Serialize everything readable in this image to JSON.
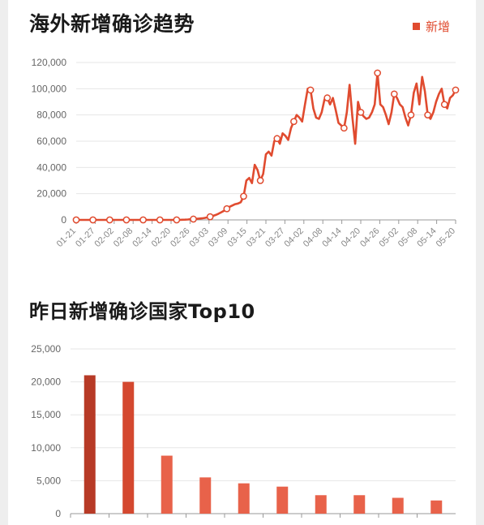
{
  "chart_data": [
    {
      "type": "line",
      "title": "海外新增确诊趋势",
      "legend": "新增",
      "color": "#e04b2f",
      "ylim": [
        0,
        120000
      ],
      "yticks": [
        "0",
        "20,000",
        "40,000",
        "60,000",
        "80,000",
        "100,000",
        "120,000"
      ],
      "xtick_labels": [
        "01-21",
        "01-27",
        "02-02",
        "02-08",
        "02-14",
        "02-20",
        "02-26",
        "03-03",
        "03-09",
        "03-15",
        "03-21",
        "03-27",
        "04-02",
        "04-08",
        "04-14",
        "04-20",
        "04-26",
        "05-02",
        "05-08",
        "05-14",
        "05-20"
      ],
      "series": [
        {
          "name": "新增",
          "values": [
            0,
            0,
            0,
            0,
            0,
            0,
            0,
            0,
            0,
            0,
            0,
            0,
            0,
            0,
            0,
            0,
            0,
            0,
            0,
            0,
            0,
            0,
            0,
            0,
            0,
            0,
            0,
            0,
            0,
            0,
            0,
            0,
            0,
            0,
            0,
            0,
            0,
            0,
            100,
            200,
            300,
            500,
            600,
            800,
            1000,
            1200,
            1500,
            1900,
            2400,
            3000,
            3800,
            4700,
            5800,
            7000,
            8500,
            10000,
            11000,
            12000,
            12500,
            13500,
            18000,
            30000,
            32000,
            28000,
            42000,
            38000,
            30000,
            35000,
            50000,
            52000,
            49000,
            60000,
            62000,
            58000,
            66000,
            64000,
            61000,
            70000,
            75000,
            80000,
            78000,
            75000,
            88000,
            100000,
            99000,
            85000,
            78000,
            77000,
            82000,
            92000,
            93000,
            88000,
            93000,
            84000,
            74000,
            72000,
            70000,
            82000,
            103000,
            78000,
            58000,
            90000,
            82000,
            79000,
            77000,
            78000,
            82000,
            88000,
            112000,
            88000,
            86000,
            80000,
            73000,
            82000,
            96000,
            93000,
            88000,
            86000,
            78000,
            72000,
            80000,
            97000,
            104000,
            88000,
            109000,
            98000,
            80000,
            77000,
            82000,
            90000,
            96000,
            100000,
            88000,
            85000,
            93000,
            95000,
            99000
          ],
          "markers_every": 6
        }
      ]
    },
    {
      "type": "bar",
      "title": "昨日新增确诊国家Top10",
      "ylim": [
        0,
        25000
      ],
      "yticks": [
        "0",
        "5,000",
        "10,000",
        "15,000",
        "20,000",
        "25,000"
      ],
      "categories": [
        "",
        "",
        "",
        "",
        "",
        "",
        "",
        "",
        "",
        ""
      ],
      "values": [
        21000,
        20000,
        8800,
        5500,
        4600,
        4100,
        2800,
        2800,
        2400,
        2000
      ],
      "colors": [
        "#b73a26",
        "#d4482f",
        "#e8624a",
        "#e8624a",
        "#e8624a",
        "#e8624a",
        "#e8624a",
        "#e8624a",
        "#e8624a",
        "#e8624a"
      ]
    }
  ]
}
